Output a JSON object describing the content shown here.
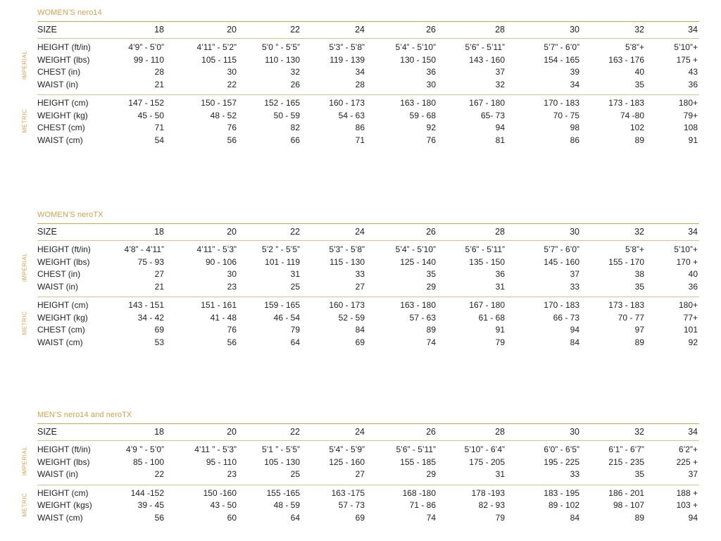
{
  "colors": {
    "accent": "#d9a04a",
    "text": "#222222"
  },
  "vertical_labels": {
    "imperial": "IMPERIAL",
    "metric": "METRIC"
  },
  "tables": [
    {
      "title": "WOMEN’S nero14",
      "size_label": "SIZE",
      "sizes": [
        "18",
        "20",
        "22",
        "24",
        "26",
        "28",
        "30",
        "32",
        "34"
      ],
      "imperial": [
        {
          "label": "HEIGHT (ft/in)",
          "values": [
            "4’9” - 5’0”",
            "4’11” - 5’2”",
            "5’0 ” - 5’5”",
            "5’3” - 5’8”",
            "5’4” - 5’10”",
            "5’6” - 5’11”",
            "5’7” - 6’0”",
            "5’8”+",
            "5’10”+"
          ]
        },
        {
          "label": "WEIGHT (lbs)",
          "values": [
            "99 - 110",
            "105 - 115",
            "110 - 130",
            "119 - 139",
            "130 - 150",
            "143 - 160",
            "154 - 165",
            "163 - 176",
            "175 +"
          ]
        },
        {
          "label": "CHEST (in)",
          "values": [
            "28",
            "30",
            "32",
            "34",
            "36",
            "37",
            "39",
            "40",
            "43"
          ]
        },
        {
          "label": "WAIST (in)",
          "values": [
            "21",
            "22",
            "26",
            "28",
            "30",
            "32",
            "34",
            "35",
            "36"
          ]
        }
      ],
      "metric": [
        {
          "label": "HEIGHT (cm)",
          "values": [
            "147 - 152",
            "150 - 157",
            "152 - 165",
            "160 - 173",
            "163 - 180",
            "167 - 180",
            "170 - 183",
            "173 - 183",
            "180+"
          ]
        },
        {
          "label": "WEIGHT (kg)",
          "values": [
            "45 - 50",
            "48 - 52",
            "50 - 59",
            "54 - 63",
            "59 - 68",
            "65- 73",
            "70 - 75",
            "74 -80",
            "79+"
          ]
        },
        {
          "label": "CHEST (cm)",
          "values": [
            "71",
            "76",
            "82",
            "86",
            "92",
            "94",
            "98",
            "102",
            "108"
          ]
        },
        {
          "label": "WAIST (cm)",
          "values": [
            "54",
            "56",
            "66",
            "71",
            "76",
            "81",
            "86",
            "89",
            "91"
          ]
        }
      ]
    },
    {
      "title": "WOMEN’S neroTX",
      "size_label": "SIZE",
      "sizes": [
        "18",
        "20",
        "22",
        "24",
        "26",
        "28",
        "30",
        "32",
        "34"
      ],
      "imperial": [
        {
          "label": "HEIGHT (ft/in)",
          "values": [
            "4’8” - 4’11”",
            "4’11” - 5’3”",
            "5’2 ” - 5’5”",
            "5’3” - 5’8”",
            "5’4” - 5’10”",
            "5’6” - 5’11”",
            "5’7” - 6’0”",
            "5’8”+",
            "5’10”+"
          ]
        },
        {
          "label": "WEIGHT (lbs)",
          "values": [
            "75 - 93",
            "90 - 106",
            "101 - 119",
            "115 - 130",
            "125 - 140",
            "135 - 150",
            "145 - 160",
            "155 - 170",
            "170 +"
          ]
        },
        {
          "label": "CHEST (in)",
          "values": [
            "27",
            "30",
            "31",
            "33",
            "35",
            "36",
            "37",
            "38",
            "40"
          ]
        },
        {
          "label": "WAIST (in)",
          "values": [
            "21",
            "23",
            "25",
            "27",
            "29",
            "31",
            "33",
            "35",
            "36"
          ]
        }
      ],
      "metric": [
        {
          "label": "HEIGHT (cm)",
          "values": [
            "143 - 151",
            "151 - 161",
            "159 - 165",
            "160 - 173",
            "163 - 180",
            "167 - 180",
            "170 - 183",
            "173 - 183",
            "180+"
          ]
        },
        {
          "label": "WEIGHT (kg)",
          "values": [
            "34 - 42",
            "41 - 48",
            "46 - 54",
            "52 - 59",
            "57 - 63",
            "61 - 68",
            "66 - 73",
            "70 - 77",
            "77+"
          ]
        },
        {
          "label": "CHEST (cm)",
          "values": [
            "69",
            "76",
            "79",
            "84",
            "89",
            "91",
            "94",
            "97",
            "101"
          ]
        },
        {
          "label": "WAIST (cm)",
          "values": [
            "53",
            "56",
            "64",
            "69",
            "74",
            "79",
            "84",
            "89",
            "92"
          ]
        }
      ]
    },
    {
      "title": "MEN’S nero14 and neroTX",
      "size_label": "SIZE",
      "sizes": [
        "18",
        "20",
        "22",
        "24",
        "26",
        "28",
        "30",
        "32",
        "34"
      ],
      "imperial": [
        {
          "label": "HEIGHT (ft/in)",
          "values": [
            "4’9 ” - 5’0”",
            "4’11 ” - 5’3”",
            "5’1 ” - 5’5”",
            "5’4” - 5’9”",
            "5’6” - 5’11”",
            "5’10” - 6’4”",
            "6’0” - 6’5”",
            "6’1” - 6’7”",
            "6’2”+"
          ]
        },
        {
          "label": "WEIGHT (lbs)",
          "values": [
            "85 - 100",
            "95 - 110",
            "105 - 130",
            "125 - 160",
            "155 - 185",
            "175 - 205",
            "195 - 225",
            "215 - 235",
            "225 +"
          ]
        },
        {
          "label": "WAIST (in)",
          "values": [
            "22",
            "23",
            "25",
            "27",
            "29",
            "31",
            "33",
            "35",
            "37"
          ]
        }
      ],
      "metric": [
        {
          "label": "HEIGHT (cm)",
          "values": [
            "144 -152",
            "150 -160",
            "155 -165",
            "163 -175",
            "168 -180",
            "178 -193",
            "183 - 195",
            "186 - 201",
            "188 +"
          ]
        },
        {
          "label": "WEIGHT (kgs)",
          "values": [
            "39 - 45",
            "43 - 50",
            "48 - 59",
            "57 - 73",
            "71 - 86",
            "82 - 93",
            "89 - 102",
            "98 - 107",
            "103 +"
          ]
        },
        {
          "label": "WAIST (cm)",
          "values": [
            "56",
            "60",
            "64",
            "69",
            "74",
            "79",
            "84",
            "89",
            "94"
          ]
        }
      ]
    }
  ]
}
